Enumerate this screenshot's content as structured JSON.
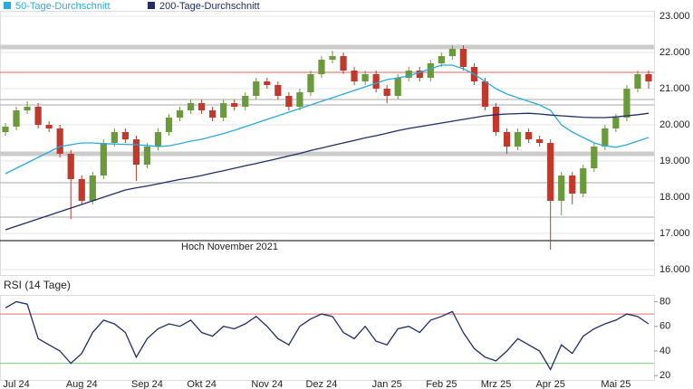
{
  "chart_data": {
    "type": "candlestick",
    "categories": [
      null,
      "Jul 24",
      null,
      null,
      null,
      null,
      null,
      "Aug 24",
      null,
      null,
      null,
      null,
      null,
      "Sep 24",
      null,
      null,
      null,
      null,
      "Okt 24",
      null,
      null,
      null,
      null,
      null,
      "Nov 24",
      null,
      null,
      null,
      null,
      "Dez 24",
      null,
      null,
      null,
      null,
      null,
      "Jan 25",
      null,
      null,
      null,
      null,
      "Feb 25",
      null,
      null,
      null,
      null,
      "Mrz 25",
      null,
      null,
      null,
      null,
      "Apr 25",
      null,
      null,
      null,
      null,
      null,
      "Mai 25",
      null,
      null,
      null
    ],
    "candles": {
      "open": [
        19800,
        19950,
        20400,
        20500,
        20000,
        19900,
        19200,
        18500,
        17900,
        18600,
        19500,
        19800,
        19600,
        18900,
        19400,
        19800,
        20200,
        20400,
        20600,
        20400,
        20200,
        20600,
        20500,
        20800,
        21200,
        21100,
        20800,
        20500,
        20900,
        21400,
        21800,
        21900,
        21500,
        21200,
        21400,
        21000,
        20800,
        21300,
        21500,
        21300,
        21700,
        21900,
        22100,
        21600,
        21200,
        20500,
        19800,
        19400,
        19800,
        19600,
        19500,
        17900,
        18600,
        18100,
        18800,
        19400,
        19900,
        20200,
        21000,
        21400
      ],
      "high": [
        20050,
        20500,
        20650,
        20600,
        20100,
        20000,
        19300,
        18600,
        18700,
        19600,
        19900,
        19900,
        19700,
        19500,
        19900,
        20300,
        20500,
        20700,
        20700,
        20500,
        20700,
        20700,
        20900,
        21300,
        21300,
        21200,
        20900,
        21000,
        21500,
        21900,
        22050,
        22000,
        21600,
        21500,
        21500,
        21100,
        21400,
        21600,
        21600,
        21800,
        22000,
        22200,
        22200,
        21700,
        21300,
        20600,
        19900,
        19900,
        19900,
        19700,
        19600,
        18700,
        18700,
        18900,
        19500,
        20000,
        20300,
        21100,
        21500,
        21500
      ],
      "low": [
        19700,
        19850,
        20300,
        19900,
        19800,
        19100,
        17400,
        17800,
        17800,
        18500,
        19400,
        19500,
        18450,
        18800,
        19300,
        19700,
        20100,
        20300,
        20300,
        20100,
        20100,
        20400,
        20400,
        20700,
        21000,
        20700,
        20400,
        20400,
        20800,
        21300,
        21700,
        21400,
        21100,
        21100,
        20900,
        20600,
        20700,
        21200,
        21200,
        21200,
        21600,
        21800,
        21500,
        21100,
        20400,
        19700,
        19200,
        19300,
        19500,
        19400,
        16550,
        17500,
        17800,
        18000,
        18700,
        19300,
        19800,
        20100,
        20900,
        21000
      ],
      "close": [
        19950,
        20400,
        20500,
        20000,
        19900,
        19200,
        18500,
        17900,
        18600,
        19500,
        19800,
        19600,
        18900,
        19400,
        19800,
        20200,
        20400,
        20600,
        20400,
        20200,
        20600,
        20500,
        20800,
        21200,
        21100,
        20800,
        20500,
        20900,
        21400,
        21800,
        21900,
        21500,
        21200,
        21400,
        21000,
        20800,
        21300,
        21500,
        21300,
        21700,
        21900,
        22100,
        21600,
        21200,
        20500,
        19800,
        19400,
        19800,
        19600,
        19500,
        17900,
        18600,
        18100,
        18800,
        19400,
        19900,
        20200,
        21000,
        21400,
        21200
      ],
      "up_color": "#6a9a3a",
      "down_color": "#c0392b"
    },
    "series": [
      {
        "name": "50-Tage-Durchschnitt",
        "color": "#29abe2",
        "values": [
          18650,
          18800,
          18950,
          19100,
          19250,
          19400,
          19450,
          19500,
          19500,
          19480,
          19470,
          19460,
          19450,
          19430,
          19400,
          19420,
          19480,
          19550,
          19600,
          19680,
          19760,
          19850,
          19950,
          20050,
          20150,
          20250,
          20350,
          20450,
          20550,
          20650,
          20750,
          20850,
          20950,
          21050,
          21150,
          21250,
          21300,
          21350,
          21450,
          21550,
          21650,
          21650,
          21550,
          21400,
          21200,
          21000,
          20850,
          20750,
          20650,
          20550,
          20400,
          20000,
          19800,
          19650,
          19500,
          19420,
          19380,
          19450,
          19550,
          19650
        ]
      },
      {
        "name": "200-Tage-Durchschnitt",
        "color": "#1f2d6b",
        "values": [
          17100,
          17200,
          17300,
          17400,
          17500,
          17600,
          17700,
          17800,
          17900,
          18000,
          18100,
          18200,
          18260,
          18310,
          18370,
          18430,
          18490,
          18540,
          18600,
          18670,
          18730,
          18800,
          18870,
          18930,
          19000,
          19070,
          19140,
          19210,
          19290,
          19360,
          19430,
          19500,
          19570,
          19640,
          19700,
          19770,
          19840,
          19900,
          19950,
          20000,
          20050,
          20100,
          20150,
          20200,
          20250,
          20280,
          20300,
          20310,
          20320,
          20300,
          20270,
          20250,
          20230,
          20210,
          20200,
          20200,
          20220,
          20250,
          20280,
          20320
        ]
      }
    ],
    "levels": [
      {
        "value": 22150,
        "style": "band",
        "color": "#cccccc"
      },
      {
        "value": 19200,
        "style": "band",
        "color": "#cccccc"
      },
      {
        "value": 20700,
        "style": "line",
        "color": "#aaaaaa"
      },
      {
        "value": 20550,
        "style": "line",
        "color": "#aaaaaa"
      },
      {
        "value": 18400,
        "style": "line",
        "color": "#aaaaaa"
      },
      {
        "value": 17450,
        "style": "line",
        "color": "#aaaaaa"
      },
      {
        "value": 21450,
        "style": "line",
        "color": "#e06060"
      },
      {
        "value": 16800,
        "style": "line",
        "color": "#000000",
        "label": "Hoch November 2021"
      }
    ],
    "ylim": [
      16000,
      23000
    ],
    "yticks": [
      {
        "value": 16000,
        "label": "16.000"
      },
      {
        "value": 17000,
        "label": "17.000"
      },
      {
        "value": 18000,
        "label": "18.000"
      },
      {
        "value": 19000,
        "label": "19.000"
      },
      {
        "value": 20000,
        "label": "20.000"
      },
      {
        "value": 21000,
        "label": "21.000"
      },
      {
        "value": 22000,
        "label": "22.000"
      },
      {
        "value": 23000,
        "label": "23.000"
      }
    ],
    "grid": true,
    "rsi": {
      "title": "RSI (14 Tage)",
      "color": "#1f2d6b",
      "values": [
        75,
        80,
        78,
        50,
        45,
        40,
        30,
        38,
        55,
        65,
        62,
        55,
        35,
        50,
        58,
        62,
        60,
        65,
        55,
        52,
        60,
        58,
        62,
        68,
        60,
        50,
        45,
        60,
        66,
        70,
        68,
        55,
        50,
        60,
        48,
        45,
        58,
        60,
        55,
        65,
        68,
        72,
        55,
        42,
        35,
        32,
        40,
        50,
        45,
        40,
        25,
        45,
        38,
        52,
        58,
        62,
        65,
        70,
        68,
        62
      ],
      "levels": [
        {
          "value": 70,
          "color": "#e07070"
        },
        {
          "value": 30,
          "color": "#7fc97f"
        }
      ],
      "ylim": [
        18,
        84
      ],
      "yticks": [
        20,
        40,
        60,
        80
      ]
    }
  }
}
